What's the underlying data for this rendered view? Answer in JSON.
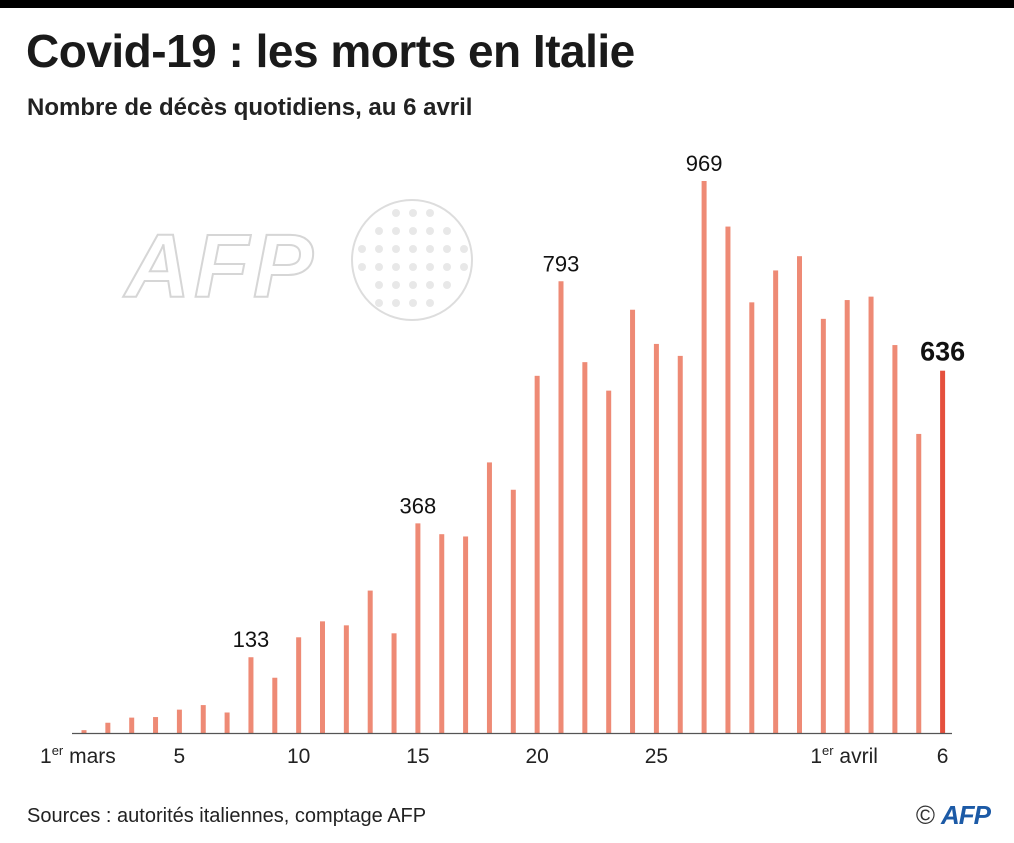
{
  "header": {
    "title": "Covid-19 : les morts en Italie",
    "subtitle": "Nombre de décès quotidiens, au 6 avril"
  },
  "footer": {
    "sources": "Sources : autorités italiennes, comptage AFP",
    "copyright_symbol": "©",
    "logo_text": "AFP"
  },
  "watermark": {
    "text": "AFP"
  },
  "colors": {
    "bar": "#ee8a75",
    "bar_highlight": "#e5503d",
    "axis": "#555555"
  },
  "chart_data": {
    "type": "bar",
    "title": "Covid-19 : les morts en Italie",
    "subtitle": "Nombre de décès quotidiens, au 6 avril",
    "xlabel": "",
    "ylabel": "",
    "ylim": [
      0,
      1000
    ],
    "grid": false,
    "categories": [
      "1 mars",
      "2",
      "3",
      "4",
      "5",
      "6",
      "7",
      "8",
      "9",
      "10",
      "11",
      "12",
      "13",
      "14",
      "15",
      "16",
      "17",
      "18",
      "19",
      "20",
      "21",
      "22",
      "23",
      "24",
      "25",
      "26",
      "27",
      "28",
      "29",
      "30",
      "31",
      "1 avril",
      "2",
      "3",
      "4",
      "5",
      "6"
    ],
    "values": [
      5,
      18,
      27,
      28,
      41,
      49,
      36,
      133,
      97,
      168,
      196,
      189,
      250,
      175,
      368,
      349,
      345,
      475,
      427,
      627,
      793,
      651,
      601,
      743,
      683,
      662,
      969,
      889,
      756,
      812,
      837,
      727,
      760,
      766,
      681,
      525,
      636
    ],
    "x_tick_labels": [
      {
        "index": 0,
        "text": "1",
        "sup": "er",
        "suffix": " mars"
      },
      {
        "index": 4,
        "text": "5"
      },
      {
        "index": 9,
        "text": "10"
      },
      {
        "index": 14,
        "text": "15"
      },
      {
        "index": 19,
        "text": "20"
      },
      {
        "index": 24,
        "text": "25"
      },
      {
        "index": 31,
        "text": "1",
        "sup": "er",
        "suffix": " avril"
      },
      {
        "index": 36,
        "text": "6"
      }
    ],
    "data_labels": [
      {
        "index": 7,
        "text": "133"
      },
      {
        "index": 14,
        "text": "368"
      },
      {
        "index": 20,
        "text": "793"
      },
      {
        "index": 26,
        "text": "969"
      },
      {
        "index": 36,
        "text": "636",
        "bold": true
      }
    ],
    "highlight_index": 36
  }
}
